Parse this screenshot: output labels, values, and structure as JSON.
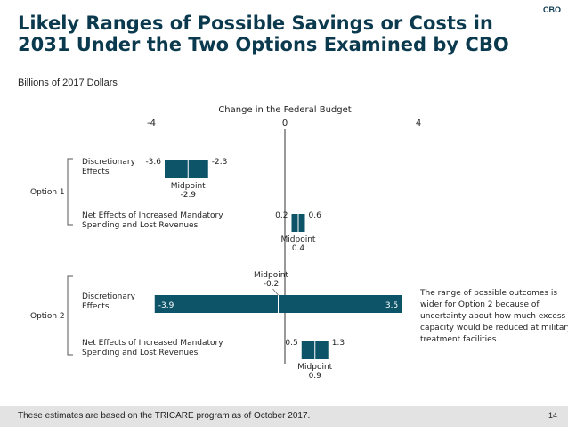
{
  "header": {
    "title": "Likely Ranges of Possible Savings or Costs in 2031 Under the Two Options Examined by CBO",
    "brand": "CBO",
    "subtitle": "Billions of 2017 Dollars"
  },
  "footer": {
    "note": "These estimates are based on the TRICARE program as of October 2017.",
    "page": "14"
  },
  "colors": {
    "bar": "#0d5468",
    "axis": "#333333",
    "text": "#222222",
    "title": "#0b3a4f"
  },
  "chart_data": {
    "type": "bar",
    "orientation": "horizontal-range",
    "title": "Change in the Federal Budget",
    "xlim": [
      -4,
      4
    ],
    "ticks": [
      -4,
      0,
      4
    ],
    "tick_labels": [
      "-4",
      "0",
      "4"
    ],
    "groups": [
      {
        "name": "Option 1",
        "rows": [
          {
            "category": [
              "Discretionary",
              "Effects"
            ],
            "low": -3.6,
            "high": -2.3,
            "mid": -2.9,
            "low_label": "-3.6",
            "high_label": "-2.3",
            "mid_label": [
              "Midpoint",
              "-2.9"
            ],
            "labels_inside": false,
            "mid_above": false
          },
          {
            "category": [
              "Net Effects of Increased Mandatory",
              "Spending and Lost Revenues"
            ],
            "low": 0.2,
            "high": 0.6,
            "mid": 0.4,
            "low_label": "0.2",
            "high_label": "0.6",
            "mid_label": [
              "Midpoint",
              "0.4"
            ],
            "labels_inside": false,
            "mid_above": false
          }
        ]
      },
      {
        "name": "Option 2",
        "rows": [
          {
            "category": [
              "Discretionary",
              "Effects"
            ],
            "low": -3.9,
            "high": 3.5,
            "mid": -0.2,
            "low_label": "-3.9",
            "high_label": "3.5",
            "mid_label": [
              "Midpoint",
              "-0.2"
            ],
            "labels_inside": true,
            "mid_above": true
          },
          {
            "category": [
              "Net Effects of Increased Mandatory",
              "Spending and Lost Revenues"
            ],
            "low": 0.5,
            "high": 1.3,
            "mid": 0.9,
            "low_label": "0.5",
            "high_label": "1.3",
            "mid_label": [
              "Midpoint",
              "0.9"
            ],
            "labels_inside": false,
            "mid_above": false
          }
        ]
      }
    ],
    "annotation": [
      "The range of possible outcomes is",
      "wider for Option 2 because of",
      "uncertainty about how much excess",
      "capacity would be reduced at military",
      "treatment facilities."
    ]
  }
}
